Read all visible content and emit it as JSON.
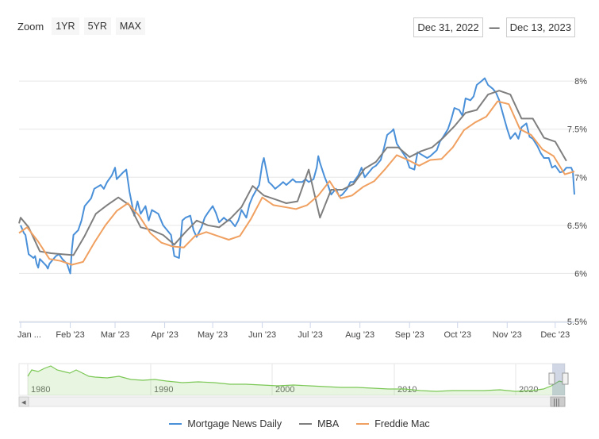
{
  "toolbar": {
    "zoom_label": "Zoom",
    "buttons": [
      "1YR",
      "5YR",
      "MAX"
    ],
    "range_from": "Dec 31, 2022",
    "range_sep": "—",
    "range_to": "Dec 13, 2023"
  },
  "navigator": {
    "decade_labels": [
      "1980",
      "1990",
      "2000",
      "2010",
      "2020"
    ],
    "scroll_left_icon": "◂",
    "scroll_right_icon": "▸",
    "handle_icon": "|||"
  },
  "colors": {
    "mnd": "#4a90d9",
    "mba": "#7f7f7f",
    "freddie": "#f0a060",
    "navigator": "#7cc856"
  },
  "chart_data": {
    "type": "line",
    "title": "",
    "xlabel": "",
    "ylabel": "",
    "x_ticks": [
      "Jan ...",
      "Feb '23",
      "Mar '23",
      "Apr '23",
      "May '23",
      "Jun '23",
      "Jul '23",
      "Aug '23",
      "Sep '23",
      "Oct '23",
      "Nov '23",
      "Dec '23"
    ],
    "y_ticks": [
      "5.5%",
      "6%",
      "6.5%",
      "7%",
      "7.5%",
      "8%"
    ],
    "ylim": [
      5.5,
      8.1
    ],
    "xlim": [
      "2022-12-31",
      "2023-12-13"
    ],
    "grid": "horizontal",
    "legend_position": "bottom-center",
    "series": [
      {
        "name": "Mortgage News Daily",
        "points": [
          [
            "2023-01-01",
            6.5
          ],
          [
            "2023-01-03",
            6.42
          ],
          [
            "2023-01-04",
            6.4
          ],
          [
            "2023-01-05",
            6.3
          ],
          [
            "2023-01-06",
            6.2
          ],
          [
            "2023-01-09",
            6.16
          ],
          [
            "2023-01-10",
            6.18
          ],
          [
            "2023-01-11",
            6.1
          ],
          [
            "2023-01-12",
            6.06
          ],
          [
            "2023-01-13",
            6.15
          ],
          [
            "2023-01-17",
            6.08
          ],
          [
            "2023-01-18",
            6.05
          ],
          [
            "2023-01-19",
            6.1
          ],
          [
            "2023-01-20",
            6.12
          ],
          [
            "2023-01-23",
            6.18
          ],
          [
            "2023-01-25",
            6.2
          ],
          [
            "2023-01-27",
            6.15
          ],
          [
            "2023-01-30",
            6.1
          ],
          [
            "2023-02-01",
            6.0
          ],
          [
            "2023-02-02",
            6.25
          ],
          [
            "2023-02-03",
            6.4
          ],
          [
            "2023-02-06",
            6.45
          ],
          [
            "2023-02-08",
            6.55
          ],
          [
            "2023-02-10",
            6.7
          ],
          [
            "2023-02-14",
            6.78
          ],
          [
            "2023-02-16",
            6.88
          ],
          [
            "2023-02-20",
            6.92
          ],
          [
            "2023-02-22",
            6.88
          ],
          [
            "2023-02-24",
            6.95
          ],
          [
            "2023-02-27",
            7.02
          ],
          [
            "2023-03-01",
            7.1
          ],
          [
            "2023-03-02",
            6.98
          ],
          [
            "2023-03-06",
            7.05
          ],
          [
            "2023-03-08",
            7.08
          ],
          [
            "2023-03-10",
            6.85
          ],
          [
            "2023-03-13",
            6.6
          ],
          [
            "2023-03-15",
            6.75
          ],
          [
            "2023-03-17",
            6.62
          ],
          [
            "2023-03-20",
            6.7
          ],
          [
            "2023-03-22",
            6.55
          ],
          [
            "2023-03-24",
            6.66
          ],
          [
            "2023-03-28",
            6.62
          ],
          [
            "2023-03-31",
            6.5
          ],
          [
            "2023-04-03",
            6.44
          ],
          [
            "2023-04-05",
            6.4
          ],
          [
            "2023-04-07",
            6.18
          ],
          [
            "2023-04-10",
            6.16
          ],
          [
            "2023-04-12",
            6.55
          ],
          [
            "2023-04-14",
            6.58
          ],
          [
            "2023-04-17",
            6.6
          ],
          [
            "2023-04-19",
            6.45
          ],
          [
            "2023-04-21",
            6.38
          ],
          [
            "2023-04-24",
            6.48
          ],
          [
            "2023-04-26",
            6.58
          ],
          [
            "2023-04-28",
            6.63
          ],
          [
            "2023-05-01",
            6.7
          ],
          [
            "2023-05-03",
            6.63
          ],
          [
            "2023-05-05",
            6.53
          ],
          [
            "2023-05-08",
            6.58
          ],
          [
            "2023-05-10",
            6.55
          ],
          [
            "2023-05-12",
            6.55
          ],
          [
            "2023-05-15",
            6.49
          ],
          [
            "2023-05-17",
            6.55
          ],
          [
            "2023-05-19",
            6.66
          ],
          [
            "2023-05-22",
            6.58
          ],
          [
            "2023-05-24",
            6.72
          ],
          [
            "2023-05-26",
            6.8
          ],
          [
            "2023-05-30",
            6.92
          ],
          [
            "2023-06-01",
            7.14
          ],
          [
            "2023-06-02",
            7.2
          ],
          [
            "2023-06-05",
            6.95
          ],
          [
            "2023-06-07",
            6.92
          ],
          [
            "2023-06-09",
            6.88
          ],
          [
            "2023-06-12",
            6.92
          ],
          [
            "2023-06-14",
            6.95
          ],
          [
            "2023-06-16",
            6.92
          ],
          [
            "2023-06-20",
            6.98
          ],
          [
            "2023-06-22",
            6.95
          ],
          [
            "2023-06-26",
            6.95
          ],
          [
            "2023-06-28",
            6.98
          ],
          [
            "2023-06-30",
            6.95
          ],
          [
            "2023-07-03",
            6.98
          ],
          [
            "2023-07-05",
            7.1
          ],
          [
            "2023-07-06",
            7.22
          ],
          [
            "2023-07-07",
            7.15
          ],
          [
            "2023-07-10",
            7.0
          ],
          [
            "2023-07-12",
            6.92
          ],
          [
            "2023-07-14",
            6.82
          ],
          [
            "2023-07-17",
            6.88
          ],
          [
            "2023-07-19",
            6.8
          ],
          [
            "2023-07-21",
            6.82
          ],
          [
            "2023-07-24",
            6.88
          ],
          [
            "2023-07-26",
            6.95
          ],
          [
            "2023-07-28",
            6.95
          ],
          [
            "2023-07-31",
            7.02
          ],
          [
            "2023-08-02",
            7.1
          ],
          [
            "2023-08-04",
            7.0
          ],
          [
            "2023-08-07",
            7.06
          ],
          [
            "2023-08-09",
            7.1
          ],
          [
            "2023-08-11",
            7.12
          ],
          [
            "2023-08-14",
            7.18
          ],
          [
            "2023-08-16",
            7.3
          ],
          [
            "2023-08-18",
            7.44
          ],
          [
            "2023-08-21",
            7.48
          ],
          [
            "2023-08-22",
            7.5
          ],
          [
            "2023-08-24",
            7.35
          ],
          [
            "2023-08-28",
            7.25
          ],
          [
            "2023-08-30",
            7.2
          ],
          [
            "2023-09-01",
            7.1
          ],
          [
            "2023-09-04",
            7.08
          ],
          [
            "2023-09-06",
            7.26
          ],
          [
            "2023-09-08",
            7.24
          ],
          [
            "2023-09-12",
            7.2
          ],
          [
            "2023-09-14",
            7.22
          ],
          [
            "2023-09-18",
            7.28
          ],
          [
            "2023-09-20",
            7.37
          ],
          [
            "2023-09-22",
            7.42
          ],
          [
            "2023-09-25",
            7.5
          ],
          [
            "2023-09-27",
            7.6
          ],
          [
            "2023-09-29",
            7.72
          ],
          [
            "2023-10-02",
            7.7
          ],
          [
            "2023-10-04",
            7.64
          ],
          [
            "2023-10-06",
            7.82
          ],
          [
            "2023-10-09",
            7.8
          ],
          [
            "2023-10-11",
            7.84
          ],
          [
            "2023-10-13",
            7.96
          ],
          [
            "2023-10-16",
            8.0
          ],
          [
            "2023-10-18",
            8.03
          ],
          [
            "2023-10-20",
            7.96
          ],
          [
            "2023-10-23",
            7.92
          ],
          [
            "2023-10-25",
            7.88
          ],
          [
            "2023-10-27",
            7.8
          ],
          [
            "2023-10-30",
            7.62
          ],
          [
            "2023-11-01",
            7.5
          ],
          [
            "2023-11-03",
            7.4
          ],
          [
            "2023-11-06",
            7.46
          ],
          [
            "2023-11-08",
            7.4
          ],
          [
            "2023-11-10",
            7.52
          ],
          [
            "2023-11-13",
            7.56
          ],
          [
            "2023-11-15",
            7.42
          ],
          [
            "2023-11-17",
            7.4
          ],
          [
            "2023-11-20",
            7.32
          ],
          [
            "2023-11-22",
            7.25
          ],
          [
            "2023-11-24",
            7.2
          ],
          [
            "2023-11-27",
            7.2
          ],
          [
            "2023-11-29",
            7.1
          ],
          [
            "2023-12-01",
            7.12
          ],
          [
            "2023-12-04",
            7.05
          ],
          [
            "2023-12-06",
            7.06
          ],
          [
            "2023-12-08",
            7.1
          ],
          [
            "2023-12-11",
            7.1
          ],
          [
            "2023-12-12",
            7.06
          ],
          [
            "2023-12-13",
            6.82
          ]
        ]
      },
      {
        "name": "MBA",
        "points": [
          [
            "2022-12-31",
            6.52
          ],
          [
            "2023-01-01",
            6.58
          ],
          [
            "2023-01-06",
            6.48
          ],
          [
            "2023-01-13",
            6.23
          ],
          [
            "2023-01-20",
            6.21
          ],
          [
            "2023-01-27",
            6.2
          ],
          [
            "2023-02-03",
            6.19
          ],
          [
            "2023-02-10",
            6.39
          ],
          [
            "2023-02-17",
            6.62
          ],
          [
            "2023-02-24",
            6.71
          ],
          [
            "2023-03-03",
            6.79
          ],
          [
            "2023-03-10",
            6.71
          ],
          [
            "2023-03-17",
            6.48
          ],
          [
            "2023-03-24",
            6.45
          ],
          [
            "2023-03-31",
            6.4
          ],
          [
            "2023-04-07",
            6.3
          ],
          [
            "2023-04-14",
            6.43
          ],
          [
            "2023-04-21",
            6.55
          ],
          [
            "2023-04-28",
            6.5
          ],
          [
            "2023-05-05",
            6.48
          ],
          [
            "2023-05-12",
            6.57
          ],
          [
            "2023-05-19",
            6.69
          ],
          [
            "2023-05-26",
            6.91
          ],
          [
            "2023-06-02",
            6.81
          ],
          [
            "2023-06-09",
            6.77
          ],
          [
            "2023-06-16",
            6.73
          ],
          [
            "2023-06-23",
            6.75
          ],
          [
            "2023-06-30",
            7.08
          ],
          [
            "2023-07-07",
            6.58
          ],
          [
            "2023-07-14",
            6.87
          ],
          [
            "2023-07-21",
            6.87
          ],
          [
            "2023-07-28",
            6.93
          ],
          [
            "2023-08-04",
            7.09
          ],
          [
            "2023-08-11",
            7.16
          ],
          [
            "2023-08-18",
            7.31
          ],
          [
            "2023-08-25",
            7.31
          ],
          [
            "2023-09-01",
            7.21
          ],
          [
            "2023-09-08",
            7.27
          ],
          [
            "2023-09-15",
            7.31
          ],
          [
            "2023-09-22",
            7.41
          ],
          [
            "2023-09-29",
            7.53
          ],
          [
            "2023-10-06",
            7.67
          ],
          [
            "2023-10-13",
            7.7
          ],
          [
            "2023-10-20",
            7.86
          ],
          [
            "2023-10-27",
            7.9
          ],
          [
            "2023-11-03",
            7.86
          ],
          [
            "2023-11-10",
            7.61
          ],
          [
            "2023-11-17",
            7.61
          ],
          [
            "2023-11-24",
            7.41
          ],
          [
            "2023-12-01",
            7.37
          ],
          [
            "2023-12-08",
            7.17
          ]
        ]
      },
      {
        "name": "Freddie Mac",
        "points": [
          [
            "2022-12-31",
            6.42
          ],
          [
            "2023-01-05",
            6.48
          ],
          [
            "2023-01-12",
            6.33
          ],
          [
            "2023-01-19",
            6.15
          ],
          [
            "2023-01-26",
            6.13
          ],
          [
            "2023-02-02",
            6.09
          ],
          [
            "2023-02-09",
            6.12
          ],
          [
            "2023-02-16",
            6.32
          ],
          [
            "2023-02-23",
            6.5
          ],
          [
            "2023-03-02",
            6.65
          ],
          [
            "2023-03-09",
            6.73
          ],
          [
            "2023-03-16",
            6.6
          ],
          [
            "2023-03-23",
            6.42
          ],
          [
            "2023-03-30",
            6.32
          ],
          [
            "2023-04-06",
            6.28
          ],
          [
            "2023-04-13",
            6.27
          ],
          [
            "2023-04-20",
            6.39
          ],
          [
            "2023-04-27",
            6.43
          ],
          [
            "2023-05-04",
            6.39
          ],
          [
            "2023-05-11",
            6.35
          ],
          [
            "2023-05-18",
            6.39
          ],
          [
            "2023-05-25",
            6.57
          ],
          [
            "2023-06-01",
            6.79
          ],
          [
            "2023-06-08",
            6.71
          ],
          [
            "2023-06-15",
            6.69
          ],
          [
            "2023-06-22",
            6.67
          ],
          [
            "2023-06-29",
            6.71
          ],
          [
            "2023-07-06",
            6.81
          ],
          [
            "2023-07-13",
            6.96
          ],
          [
            "2023-07-20",
            6.78
          ],
          [
            "2023-07-27",
            6.81
          ],
          [
            "2023-08-03",
            6.9
          ],
          [
            "2023-08-10",
            6.96
          ],
          [
            "2023-08-17",
            7.09
          ],
          [
            "2023-08-24",
            7.23
          ],
          [
            "2023-08-31",
            7.18
          ],
          [
            "2023-09-07",
            7.12
          ],
          [
            "2023-09-14",
            7.18
          ],
          [
            "2023-09-21",
            7.19
          ],
          [
            "2023-09-28",
            7.31
          ],
          [
            "2023-10-05",
            7.49
          ],
          [
            "2023-10-12",
            7.57
          ],
          [
            "2023-10-19",
            7.63
          ],
          [
            "2023-10-26",
            7.79
          ],
          [
            "2023-11-02",
            7.76
          ],
          [
            "2023-11-09",
            7.5
          ],
          [
            "2023-11-16",
            7.44
          ],
          [
            "2023-11-23",
            7.29
          ],
          [
            "2023-11-30",
            7.22
          ],
          [
            "2023-12-07",
            7.03
          ],
          [
            "2023-12-13",
            7.06
          ]
        ]
      }
    ]
  }
}
